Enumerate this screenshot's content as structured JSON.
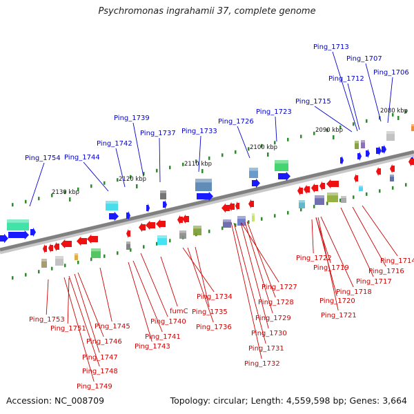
{
  "title": "Psychromonas ingrahamii 37, complete genome",
  "footer": {
    "accession": "Accession: NC_008709",
    "summary": "Topology: circular; Length: 4,559,598 bp; Genes: 3,664"
  },
  "colors": {
    "backbone": "#808080",
    "forward_label": "#0000cc",
    "reverse_label": "#cc0000",
    "forward_gene": "#1a1aff",
    "reverse_gene": "#ee1111",
    "tick": "#2e8b2e"
  },
  "ticks": [
    {
      "label": "2130 kbp"
    },
    {
      "label": "2120 kbp"
    },
    {
      "label": "2110 kbp"
    },
    {
      "label": "2100 kbp"
    },
    {
      "label": "2090 kbp"
    },
    {
      "label": "2080 kbp"
    }
  ],
  "forward_labels": [
    {
      "text": "Ping_1754"
    },
    {
      "text": "Ping_1744"
    },
    {
      "text": "Ping_1742"
    },
    {
      "text": "Ping_1739"
    },
    {
      "text": "Ping_1737"
    },
    {
      "text": "Ping_1733"
    },
    {
      "text": "Ping_1726"
    },
    {
      "text": "Ping_1723"
    },
    {
      "text": "Ping_1715"
    },
    {
      "text": "Ping_1713"
    },
    {
      "text": "Ping_1712"
    },
    {
      "text": "Ping_1707"
    },
    {
      "text": "Ping_1706"
    }
  ],
  "reverse_labels": [
    {
      "text": "Ping_1753"
    },
    {
      "text": "Ping_1751"
    },
    {
      "text": "Ping_1745"
    },
    {
      "text": "Ping_1746"
    },
    {
      "text": "Ping_1747"
    },
    {
      "text": "Ping_1748"
    },
    {
      "text": "Ping_1749"
    },
    {
      "text": "Ping_1740"
    },
    {
      "text": "fumC"
    },
    {
      "text": "Ping_1741"
    },
    {
      "text": "Ping_1743"
    },
    {
      "text": "Ping_1734"
    },
    {
      "text": "Ping_1735"
    },
    {
      "text": "Ping_1736"
    },
    {
      "text": "Ping_1727"
    },
    {
      "text": "Ping_1728"
    },
    {
      "text": "Ping_1729"
    },
    {
      "text": "Ping_1730"
    },
    {
      "text": "Ping_1731"
    },
    {
      "text": "Ping_1732"
    },
    {
      "text": "Ping_1722"
    },
    {
      "text": "Ping_1719"
    },
    {
      "text": "Ping_1718"
    },
    {
      "text": "Ping_1720"
    },
    {
      "text": "Ping_1721"
    },
    {
      "text": "Ping_1714"
    },
    {
      "text": "Ping_1716"
    },
    {
      "text": "Ping_1717"
    }
  ]
}
